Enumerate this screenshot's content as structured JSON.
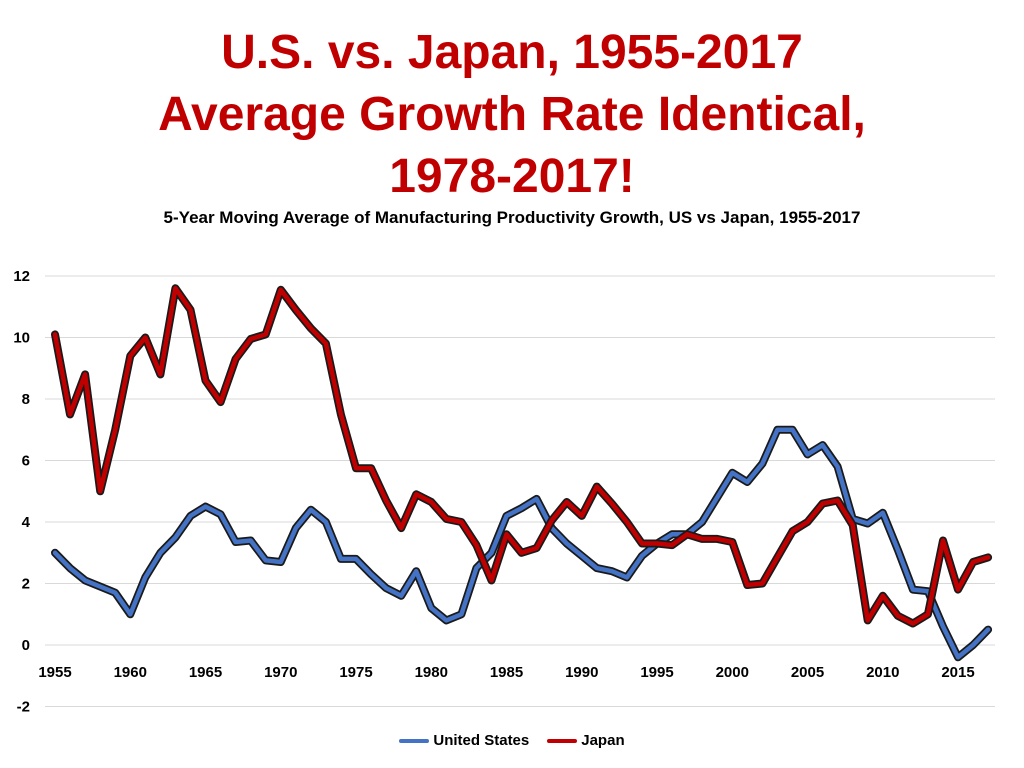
{
  "headline": {
    "line1": "U.S. vs. Japan, 1955-2017",
    "line2": "Average Growth Rate Identical,",
    "line3": "1978-2017!"
  },
  "colors": {
    "headline": "#c00000",
    "us": "#4472c4",
    "japan": "#c00000",
    "grid": "#d9d9d9"
  },
  "chart_data": {
    "type": "line",
    "title": "5-Year Moving Average of Manufacturing Productivity Growth, US vs Japan, 1955-2017",
    "xlabel": "",
    "ylabel": "",
    "xlim": [
      1955,
      2017
    ],
    "ylim": [
      -2,
      12
    ],
    "x_ticks": [
      1955,
      1960,
      1965,
      1970,
      1975,
      1980,
      1985,
      1990,
      1995,
      2000,
      2005,
      2010,
      2015
    ],
    "y_ticks": [
      -2,
      0,
      2,
      4,
      6,
      8,
      10,
      12
    ],
    "grid": true,
    "legend": "bottom-center",
    "x": [
      1955,
      1956,
      1957,
      1958,
      1959,
      1960,
      1961,
      1962,
      1963,
      1964,
      1965,
      1966,
      1967,
      1968,
      1969,
      1970,
      1971,
      1972,
      1973,
      1974,
      1975,
      1976,
      1977,
      1978,
      1979,
      1980,
      1981,
      1982,
      1983,
      1984,
      1985,
      1986,
      1987,
      1988,
      1989,
      1990,
      1991,
      1992,
      1993,
      1994,
      1995,
      1996,
      1997,
      1998,
      1999,
      2000,
      2001,
      2002,
      2003,
      2004,
      2005,
      2006,
      2007,
      2008,
      2009,
      2010,
      2011,
      2012,
      2013,
      2014,
      2015,
      2016,
      2017
    ],
    "series": [
      {
        "name": "United States",
        "values": [
          3.0,
          2.5,
          2.1,
          1.9,
          1.7,
          1.0,
          2.2,
          3.0,
          3.5,
          4.2,
          4.5,
          4.25,
          3.35,
          3.4,
          2.75,
          2.7,
          3.8,
          4.4,
          4.0,
          2.8,
          2.8,
          2.3,
          1.85,
          1.6,
          2.4,
          1.2,
          0.8,
          1.0,
          2.5,
          3.0,
          4.2,
          4.45,
          4.75,
          3.8,
          3.3,
          2.9,
          2.5,
          2.4,
          2.2,
          2.9,
          3.3,
          3.6,
          3.6,
          4.0,
          4.8,
          5.6,
          5.3,
          5.9,
          7.0,
          7.0,
          6.2,
          6.5,
          5.8,
          4.1,
          3.95,
          4.3,
          3.1,
          1.8,
          1.75,
          0.6,
          -0.4,
          0.0,
          0.5
        ]
      },
      {
        "name": "Japan",
        "values": [
          10.1,
          7.5,
          8.8,
          5.0,
          7.0,
          9.4,
          10.0,
          8.8,
          11.6,
          10.9,
          8.6,
          7.9,
          9.3,
          9.95,
          10.1,
          11.55,
          10.9,
          10.3,
          9.8,
          7.5,
          5.75,
          5.75,
          4.7,
          3.8,
          4.9,
          4.65,
          4.1,
          4.0,
          3.25,
          2.1,
          3.6,
          3.0,
          3.15,
          4.05,
          4.65,
          4.2,
          5.15,
          4.6,
          4.0,
          3.3,
          3.3,
          3.25,
          3.6,
          3.45,
          3.45,
          3.35,
          1.95,
          2.0,
          2.85,
          3.7,
          4.0,
          4.6,
          4.7,
          3.9,
          0.8,
          1.6,
          0.95,
          0.7,
          1.0,
          3.4,
          1.8,
          2.7,
          2.85
        ]
      }
    ]
  }
}
